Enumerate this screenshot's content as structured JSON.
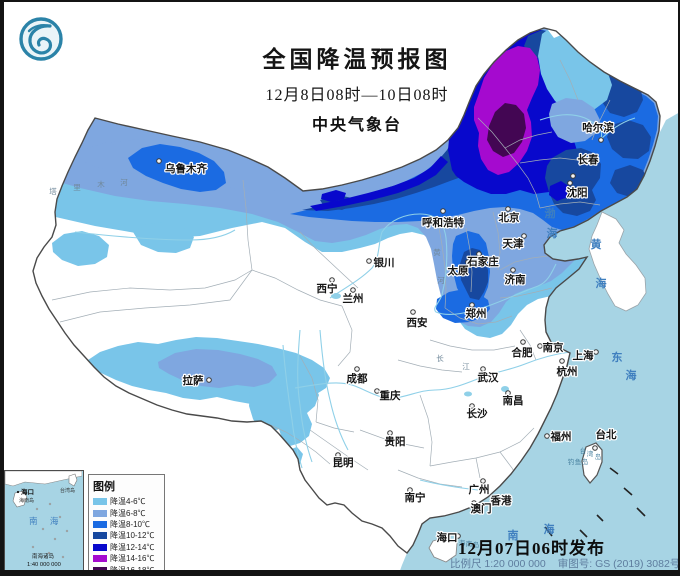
{
  "header": {
    "title": "全国降温预报图",
    "subtitle": "12月8日08时—10日08时",
    "agency": "中央气象台"
  },
  "logo_name": "china-meteorological-administration-logo",
  "legend": {
    "title": "图例",
    "items": [
      {
        "label": "降温4-6℃",
        "color": "#79C5E9"
      },
      {
        "label": "降温6-8℃",
        "color": "#7FA7E0"
      },
      {
        "label": "降温8-10℃",
        "color": "#1B6BE2"
      },
      {
        "label": "降温10-12℃",
        "color": "#17489F"
      },
      {
        "label": "降温12-14℃",
        "color": "#0808CC"
      },
      {
        "label": "降温14-16℃",
        "color": "#A50ACF"
      },
      {
        "label": "降温16-18℃",
        "color": "#430653"
      }
    ]
  },
  "footer": {
    "publish_time": "12月07日06时发布",
    "scale_text": "比例尺 1:20 000 000",
    "approval_text": "审图号: GS (2019) 3082号"
  },
  "inset": {
    "haikou": "海口",
    "hainan_island": "海南岛",
    "taiwan_island": "台湾岛",
    "south_china_sea": "南 海",
    "islands": "南海诸岛",
    "scale": "1:40 000 000"
  },
  "cities": [
    {
      "name": "乌鲁木齐",
      "dot": [
        159,
        161
      ],
      "label": [
        165,
        172
      ],
      "anchor": "start"
    },
    {
      "name": "哈尔滨",
      "dot": [
        601,
        140
      ],
      "label": [
        598,
        131
      ],
      "anchor": "middle"
    },
    {
      "name": "长春",
      "dot": [
        573,
        176
      ],
      "label": [
        588,
        163
      ],
      "anchor": "middle"
    },
    {
      "name": "沈阳",
      "dot": [
        570,
        183
      ],
      "label": [
        577,
        196
      ],
      "anchor": "middle"
    },
    {
      "name": "呼和浩特",
      "dot": [
        443,
        211
      ],
      "label": [
        443,
        226
      ],
      "anchor": "middle"
    },
    {
      "name": "北京",
      "dot": [
        508,
        209
      ],
      "label": [
        509,
        221
      ],
      "anchor": "middle"
    },
    {
      "name": "天津",
      "dot": [
        524,
        236
      ],
      "label": [
        513,
        247
      ],
      "anchor": "middle"
    },
    {
      "name": "银川",
      "dot": [
        369,
        261
      ],
      "label": [
        384,
        266
      ],
      "anchor": "middle"
    },
    {
      "name": "太原",
      "dot": [
        468,
        262
      ],
      "label": [
        458,
        274
      ],
      "anchor": "middle"
    },
    {
      "name": "石家庄",
      "dot": [
        479,
        254
      ],
      "label": [
        483,
        265
      ],
      "anchor": "middle"
    },
    {
      "name": "济南",
      "dot": [
        513,
        270
      ],
      "label": [
        515,
        283
      ],
      "anchor": "middle"
    },
    {
      "name": "西宁",
      "dot": [
        332,
        280
      ],
      "label": [
        327,
        292
      ],
      "anchor": "middle"
    },
    {
      "name": "兰州",
      "dot": [
        353,
        290
      ],
      "label": [
        353,
        302
      ],
      "anchor": "middle"
    },
    {
      "name": "西安",
      "dot": [
        413,
        312
      ],
      "label": [
        417,
        326
      ],
      "anchor": "middle"
    },
    {
      "name": "郑州",
      "dot": [
        472,
        305
      ],
      "label": [
        476,
        317
      ],
      "anchor": "middle"
    },
    {
      "name": "合肥",
      "dot": [
        523,
        342
      ],
      "label": [
        522,
        356
      ],
      "anchor": "middle"
    },
    {
      "name": "南京",
      "dot": [
        540,
        346
      ],
      "label": [
        553,
        351
      ],
      "anchor": "middle"
    },
    {
      "name": "上海",
      "dot": [
        596,
        352
      ],
      "label": [
        583,
        359
      ],
      "anchor": "middle"
    },
    {
      "name": "杭州",
      "dot": [
        562,
        361
      ],
      "label": [
        567,
        375
      ],
      "anchor": "middle"
    },
    {
      "name": "武汉",
      "dot": [
        483,
        369
      ],
      "label": [
        488,
        381
      ],
      "anchor": "middle"
    },
    {
      "name": "南昌",
      "dot": [
        508,
        393
      ],
      "label": [
        513,
        404
      ],
      "anchor": "middle"
    },
    {
      "name": "长沙",
      "dot": [
        472,
        406
      ],
      "label": [
        477,
        417
      ],
      "anchor": "middle"
    },
    {
      "name": "重庆",
      "dot": [
        377,
        391
      ],
      "label": [
        390,
        399
      ],
      "anchor": "middle"
    },
    {
      "name": "成都",
      "dot": [
        357,
        369
      ],
      "label": [
        357,
        382
      ],
      "anchor": "middle"
    },
    {
      "name": "昆明",
      "dot": [
        338,
        455
      ],
      "label": [
        343,
        466
      ],
      "anchor": "middle"
    },
    {
      "name": "拉萨",
      "dot": [
        209,
        380
      ],
      "label": [
        193,
        384
      ],
      "anchor": "middle"
    },
    {
      "name": "贵阳",
      "dot": [
        390,
        433
      ],
      "label": [
        395,
        445
      ],
      "anchor": "middle"
    },
    {
      "name": "南宁",
      "dot": [
        410,
        490
      ],
      "label": [
        415,
        501
      ],
      "anchor": "middle"
    },
    {
      "name": "广州",
      "dot": [
        483,
        481
      ],
      "label": [
        479,
        493
      ],
      "anchor": "middle"
    },
    {
      "name": "香港",
      "dot": [
        509,
        497
      ],
      "label": [
        501,
        504
      ],
      "anchor": "middle"
    },
    {
      "name": "澳门",
      "dot": [
        474,
        503
      ],
      "label": [
        481,
        512
      ],
      "anchor": "middle"
    },
    {
      "name": "海口",
      "dot": [
        458,
        536
      ],
      "label": [
        447,
        541
      ],
      "anchor": "middle"
    },
    {
      "name": "福州",
      "dot": [
        547,
        436
      ],
      "label": [
        561,
        440
      ],
      "anchor": "middle"
    },
    {
      "name": "台北",
      "dot": [
        595,
        448
      ],
      "label": [
        606,
        438
      ],
      "anchor": "middle"
    }
  ],
  "map_labels": [
    {
      "cls": "sea-label",
      "chars": [
        [
          "渤",
          550,
          217
        ],
        [
          "海",
          552,
          237
        ]
      ]
    },
    {
      "cls": "sea-label",
      "chars": [
        [
          "黄",
          596,
          248
        ],
        [
          "海",
          601,
          287
        ]
      ]
    },
    {
      "cls": "sea-label",
      "chars": [
        [
          "东",
          617,
          361
        ],
        [
          "海",
          631,
          379
        ]
      ]
    },
    {
      "cls": "sea-label",
      "chars": [
        [
          "南",
          513,
          539
        ],
        [
          "海",
          549,
          533
        ]
      ]
    },
    {
      "cls": "sea-label-sm",
      "chars": [
        [
          "台",
          583,
          453
        ],
        [
          "湾",
          590,
          456
        ],
        [
          "岛",
          598,
          459
        ]
      ]
    },
    {
      "cls": "sea-label-sm",
      "chars": [
        [
          "钓",
          571,
          464
        ],
        [
          "鱼",
          578,
          464
        ],
        [
          "岛",
          585,
          464
        ]
      ]
    },
    {
      "cls": "sea-label-sm",
      "chars": [
        [
          "海",
          462,
          545
        ],
        [
          "南",
          469,
          546
        ],
        [
          "岛",
          476,
          547
        ]
      ]
    },
    {
      "cls": "river-label",
      "chars": [
        [
          "塔",
          53,
          194
        ],
        [
          "里",
          77,
          190
        ],
        [
          "木",
          101,
          187
        ],
        [
          "河",
          124,
          185
        ]
      ]
    },
    {
      "cls": "river-label",
      "chars": [
        [
          "黄",
          437,
          255
        ],
        [
          "河",
          441,
          283
        ]
      ]
    },
    {
      "cls": "river-label",
      "chars": [
        [
          "长",
          440,
          361
        ],
        [
          "江",
          466,
          369
        ]
      ]
    }
  ]
}
